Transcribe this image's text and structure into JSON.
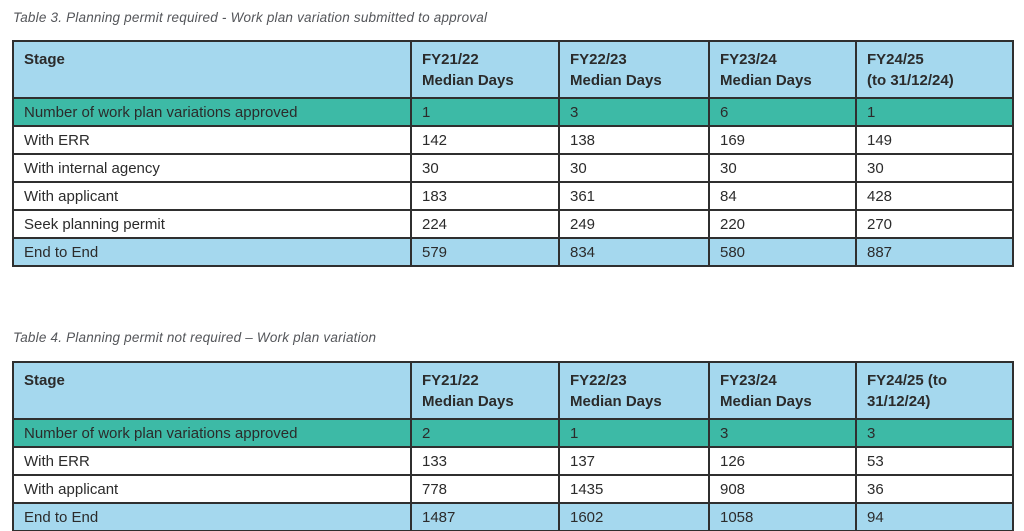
{
  "colors": {
    "header_bg": "#a5d8ee",
    "highlight_row_bg": "#3dbaa6",
    "total_row_bg": "#a5d8ee",
    "border": "#2f2f2f",
    "title_text": "#54565a",
    "cell_text": "#2b2b2b"
  },
  "tables": [
    {
      "title": "Table 3. Planning permit required - Work plan variation submitted to approval",
      "headers": [
        "Stage",
        "FY21/22\nMedian Days",
        "FY22/23\nMedian Days",
        "FY23/24\nMedian Days",
        "FY24/25\n(to 31/12/24)"
      ],
      "rows": [
        {
          "label": "Number of work plan variations approved",
          "values": [
            "1",
            "3",
            "6",
            "1"
          ],
          "style": "highlight"
        },
        {
          "label": "With ERR",
          "values": [
            "142",
            "138",
            "169",
            "149"
          ],
          "style": "normal"
        },
        {
          "label": "With internal agency",
          "values": [
            "30",
            "30",
            "30",
            "30"
          ],
          "style": "normal"
        },
        {
          "label": "With applicant",
          "values": [
            "183",
            "361",
            "84",
            "428"
          ],
          "style": "normal"
        },
        {
          "label": "Seek planning permit",
          "values": [
            "224",
            "249",
            "220",
            "270"
          ],
          "style": "normal"
        },
        {
          "label": "End to End",
          "values": [
            "579",
            "834",
            "580",
            "887"
          ],
          "style": "total"
        }
      ]
    },
    {
      "title": "Table 4. Planning permit not required – Work plan variation",
      "headers": [
        "Stage",
        "FY21/22\nMedian Days",
        "FY22/23\nMedian Days",
        "FY23/24\nMedian Days",
        "FY24/25 (to\n31/12/24)"
      ],
      "rows": [
        {
          "label": "Number of work plan variations approved",
          "values": [
            "2",
            "1",
            "3",
            "3"
          ],
          "style": "highlight"
        },
        {
          "label": "With ERR",
          "values": [
            "133",
            "137",
            "126",
            "53"
          ],
          "style": "normal"
        },
        {
          "label": "With applicant",
          "values": [
            "778",
            "1435",
            "908",
            "36"
          ],
          "style": "normal"
        },
        {
          "label": "End to End",
          "values": [
            "1487",
            "1602",
            "1058",
            "94"
          ],
          "style": "total"
        }
      ]
    }
  ]
}
